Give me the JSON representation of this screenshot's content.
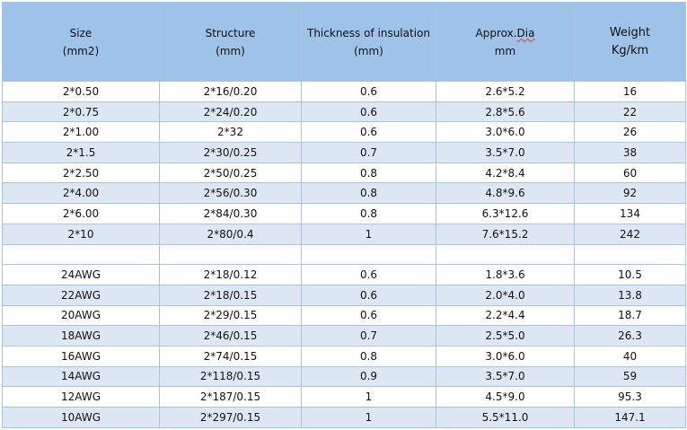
{
  "headers": [
    {
      "line1": "Size",
      "line2": "(mm2)"
    },
    {
      "line1": "Structure",
      "line2": "(mm)"
    },
    {
      "line1": "Thickness of insulation",
      "line2": "(mm)"
    },
    {
      "line1_pre": "Approx.",
      "line1_flag": "Dia",
      "line2": "mm"
    },
    {
      "line1": "Weight",
      "line2": "Kg/km"
    }
  ],
  "rows": [
    {
      "size": "2*0.50",
      "structure": "2*16/0.20",
      "thickness": "0.6",
      "dia": "2.6*5.2",
      "weight": "16"
    },
    {
      "size": "2*0.75",
      "structure": "2*24/0.20",
      "thickness": "0.6",
      "dia": "2.8*5.6",
      "weight": "22"
    },
    {
      "size": "2*1.00",
      "structure": "2*32",
      "thickness": "0.6",
      "dia": "3.0*6.0",
      "weight": "26"
    },
    {
      "size": "2*1.5",
      "structure": "2*30/0.25",
      "thickness": "0.7",
      "dia": "3.5*7.0",
      "weight": "38"
    },
    {
      "size": "2*2.50",
      "structure": "2*50/0.25",
      "thickness": "0.8",
      "dia": "4.2*8.4",
      "weight": "60"
    },
    {
      "size": "2*4.00",
      "structure": "2*56/0.30",
      "thickness": "0.8",
      "dia": "4.8*9.6",
      "weight": "92"
    },
    {
      "size": "2*6.00",
      "structure": "2*84/0.30",
      "thickness": "0.8",
      "dia": "6.3*12.6",
      "weight": "134"
    },
    {
      "size": "2*10",
      "structure": "2*80/0.4",
      "thickness": "1",
      "dia": "7.6*15.2",
      "weight": "242"
    },
    {
      "size": "",
      "structure": "",
      "thickness": "",
      "dia": "",
      "weight": ""
    },
    {
      "size": "24AWG",
      "structure": "2*18/0.12",
      "thickness": "0.6",
      "dia": "1.8*3.6",
      "weight": "10.5"
    },
    {
      "size": "22AWG",
      "structure": "2*18/0.15",
      "thickness": "0.6",
      "dia": "2.0*4.0",
      "weight": "13.8"
    },
    {
      "size": "20AWG",
      "structure": "2*29/0.15",
      "thickness": "0.6",
      "dia": "2.2*4.4",
      "weight": "18.7"
    },
    {
      "size": "18AWG",
      "structure": "2*46/0.15",
      "thickness": "0.7",
      "dia": "2.5*5.0",
      "weight": "26.3"
    },
    {
      "size": "16AWG",
      "structure": "2*74/0.15",
      "thickness": "0.8",
      "dia": "3.0*6.0",
      "weight": "40"
    },
    {
      "size": "14AWG",
      "structure": "2*118/0.15",
      "thickness": "0.9",
      "dia": "3.5*7.0",
      "weight": "59"
    },
    {
      "size": "12AWG",
      "structure": "2*187/0.15",
      "thickness": "1",
      "dia": "4.5*9.0",
      "weight": "95.3"
    },
    {
      "size": "10AWG",
      "structure": "2*297/0.15",
      "thickness": "1",
      "dia": "5.5*11.0",
      "weight": "147.1"
    }
  ]
}
